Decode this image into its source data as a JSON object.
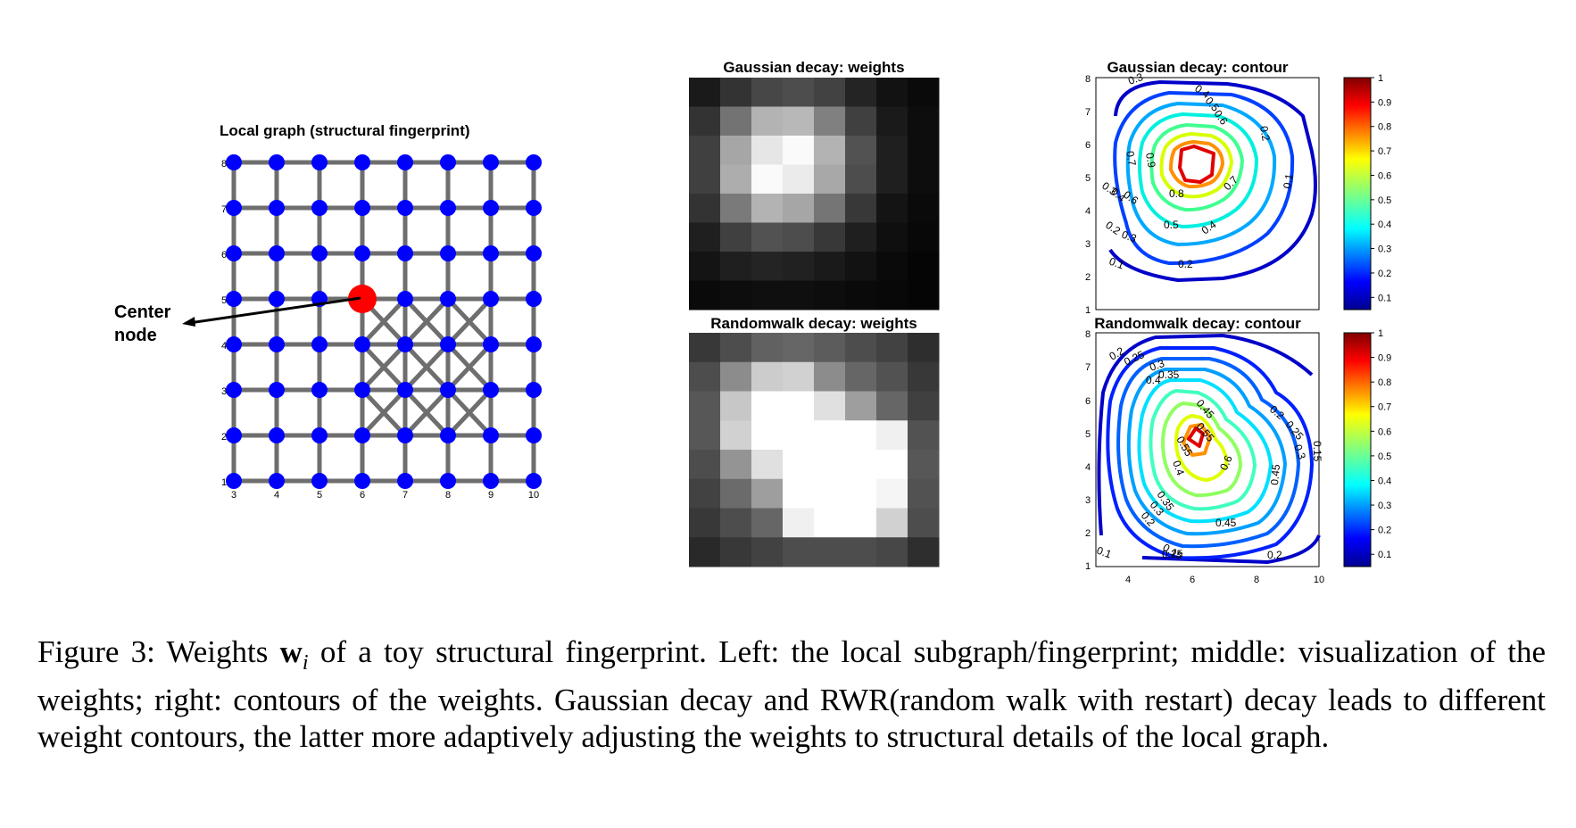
{
  "panel_left": {
    "title": "Local graph (structural fingerprint)",
    "annotation": "Center node",
    "x_ticks": [
      "3",
      "4",
      "5",
      "6",
      "7",
      "8",
      "9",
      "10"
    ],
    "y_ticks": [
      "8",
      "7",
      "6",
      "5",
      "4",
      "3",
      "2",
      "1"
    ]
  },
  "panel_gauss_weights": {
    "title": "Gaussian decay: weights"
  },
  "panel_rw_weights": {
    "title": "Randomwalk decay: weights"
  },
  "panel_gauss_contour": {
    "title": "Gaussian decay: contour",
    "y_ticks": [
      "8",
      "7",
      "6",
      "5",
      "4",
      "3",
      "2",
      "1"
    ],
    "colorbar_ticks": [
      "1",
      "0.9",
      "0.8",
      "0.7",
      "0.6",
      "0.5",
      "0.4",
      "0.3",
      "0.2",
      "0.1"
    ],
    "contour_labels": [
      "0.3",
      "0.4",
      "0.5",
      "0.6",
      "0.2",
      "0.7",
      "0.9",
      "0.3",
      "0.4",
      "0.6",
      "0.8",
      "0.7",
      "0.5",
      "0.4",
      "0.2",
      "0.3",
      "0.1",
      "0.1",
      "0.2"
    ]
  },
  "panel_rw_contour": {
    "title": "Randomwalk decay: contour",
    "y_ticks": [
      "8",
      "7",
      "6",
      "5",
      "4",
      "3",
      "2",
      "1"
    ],
    "x_ticks": [
      "4",
      "6",
      "8",
      "10"
    ],
    "colorbar_ticks": [
      "1",
      "0.9",
      "0.8",
      "0.7",
      "0.6",
      "0.5",
      "0.4",
      "0.3",
      "0.2",
      "0.1"
    ],
    "contour_labels": [
      "0.2",
      "0.25",
      "0.3",
      "0.35",
      "0.4",
      "0.45",
      "0.55",
      "0.6",
      "0.2",
      "0.25",
      "0.3",
      "0.15",
      "0.45",
      "0.4",
      "0.55",
      "0.35",
      "0.3",
      "0.2",
      "0.45",
      "0.25",
      "0.2",
      "0.15",
      "0.1"
    ]
  },
  "caption": {
    "prefix": "Figure 3: Weights ",
    "symbol": "w",
    "subscript": "i",
    "text": " of a toy structural fingerprint. Left: the local subgraph/fingerprint; middle: visualization of the weights; right: contours of the weights. Gaussian decay and RWR(random walk with restart) decay leads to different weight contours, the latter more adaptively adjusting the weights to structural details of the local graph."
  },
  "colors": {
    "node": "#0000ff",
    "center": "#ff0000",
    "edge": "#6e6e6e"
  }
}
